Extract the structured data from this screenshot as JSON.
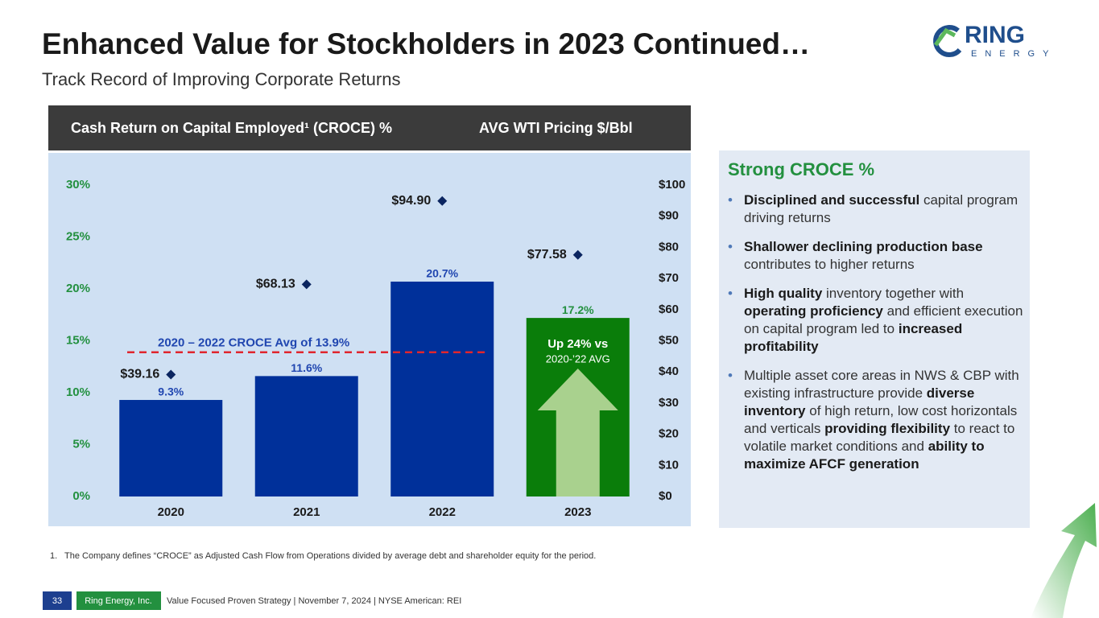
{
  "header": {
    "title": "Enhanced Value for Stockholders in 2023 Continued…",
    "subtitle": "Track Record of Improving Corporate Returns"
  },
  "logo": {
    "name": "RING",
    "tagline": "ENERGY"
  },
  "chart_data": {
    "type": "bar",
    "categories": [
      "2020",
      "2021",
      "2022",
      "2023"
    ],
    "series": [
      {
        "name": "Cash Return on Capital Employed¹ (CROCE) %",
        "colors": [
          "#00309a",
          "#00309a",
          "#00309a",
          "#0a7d0a"
        ],
        "label_colors": [
          "#2046b0",
          "#2046b0",
          "#2046b0",
          "#23903f"
        ],
        "values": [
          9.3,
          11.6,
          20.7,
          17.2
        ],
        "value_labels": [
          "9.3%",
          "11.6%",
          "20.7%",
          "17.2%"
        ]
      },
      {
        "name": "AVG WTI Pricing $/Bbl",
        "type": "scatter",
        "axis": "y2",
        "color": "#0b2560",
        "values": [
          39.16,
          68.13,
          94.9,
          77.58
        ],
        "value_labels": [
          "$39.16",
          "$68.13",
          "$94.90",
          "$77.58"
        ]
      }
    ],
    "ylim": [
      0,
      30
    ],
    "yticks": [
      {
        "value": 0,
        "label": "0%"
      },
      {
        "value": 5,
        "label": "5%"
      },
      {
        "value": 10,
        "label": "10%"
      },
      {
        "value": 15,
        "label": "15%"
      },
      {
        "value": 20,
        "label": "20%"
      },
      {
        "value": 25,
        "label": "25%"
      },
      {
        "value": 30,
        "label": "30%"
      }
    ],
    "y2lim": [
      0,
      100
    ],
    "y2ticks": [
      {
        "value": 0,
        "label": "$0"
      },
      {
        "value": 10,
        "label": "$10"
      },
      {
        "value": 20,
        "label": "$20"
      },
      {
        "value": 30,
        "label": "$30"
      },
      {
        "value": 40,
        "label": "$40"
      },
      {
        "value": 50,
        "label": "$50"
      },
      {
        "value": 60,
        "label": "$60"
      },
      {
        "value": 70,
        "label": "$70"
      },
      {
        "value": 80,
        "label": "$80"
      },
      {
        "value": 90,
        "label": "$90"
      },
      {
        "value": 100,
        "label": "$100"
      }
    ],
    "reference_line": {
      "value": 13.9,
      "label": "2020 – 2022 CROCE Avg of 13.9%",
      "color": "#e0262e",
      "label_color": "#2046b0"
    },
    "annotation": {
      "title": "Up 24% vs",
      "subtitle": "2020-’22 AVG"
    }
  },
  "sidebar": {
    "title": "Strong CROCE %",
    "bullets": [
      [
        {
          "text": "Disciplined and successful",
          "bold": true
        },
        {
          "text": " capital program driving returns"
        }
      ],
      [
        {
          "text": "Shallower declining production base",
          "bold": true
        },
        {
          "text": " contributes to higher returns"
        }
      ],
      [
        {
          "text": "High quality",
          "bold": true
        },
        {
          "text": " inventory together with "
        },
        {
          "text": "operating proficiency",
          "bold": true
        },
        {
          "text": " and efficient execution on capital program led to "
        },
        {
          "text": "increased profitability",
          "bold": true
        }
      ],
      [
        {
          "text": "Multiple asset core areas in NWS & CBP with existing infrastructure provide "
        },
        {
          "text": "diverse inventory",
          "bold": true
        },
        {
          "text": " of high return, low cost horizontals and verticals "
        },
        {
          "text": "providing flexibility",
          "bold": true
        },
        {
          "text": " to react to volatile market conditions and "
        },
        {
          "text": "ability to maximize AFCF generation",
          "bold": true
        }
      ]
    ]
  },
  "footnote": {
    "marker": "1.",
    "text": "The Company defines “CROCE” as Adjusted Cash Flow from Operations divided by average debt and shareholder equity for the period."
  },
  "footer": {
    "page": "33",
    "company": "Ring Energy, Inc.",
    "text": "Value Focused Proven Strategy | November 7, 2024 | NYSE American: REI"
  }
}
